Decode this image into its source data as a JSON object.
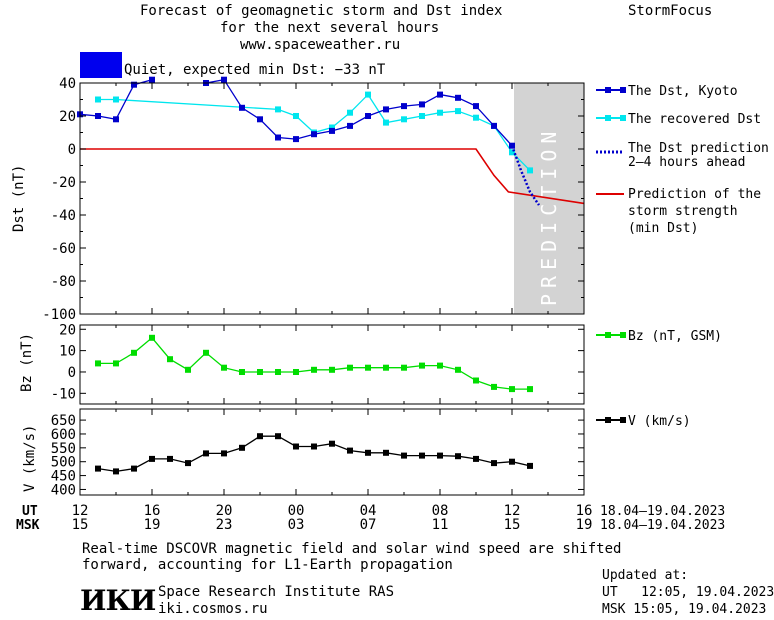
{
  "header": {
    "title_line1": "Forecast of geomagnetic storm and Dst index",
    "title_line2": "for the next several hours",
    "site": "www.spaceweather.ru",
    "brand": "StormFocus",
    "status_text": "Quiet, expected min Dst: −33 nT",
    "status_color": "#0000ee"
  },
  "colors": {
    "dst_kyoto": "#0000cc",
    "dst_recovered": "#00e6ee",
    "dst_prediction": "#0000cc",
    "storm_prediction": "#dd0000",
    "bz": "#00dd00",
    "v": "#000000",
    "prediction_band": "#d3d3d3"
  },
  "legend": {
    "dst_kyoto": "The Dst, Kyoto",
    "dst_recovered": "The recovered Dst",
    "dst_prediction_1": "The Dst prediction",
    "dst_prediction_2": "2–4 hours ahead",
    "storm_1": "Prediction of the",
    "storm_2": "storm strength",
    "storm_3": "(min Dst)",
    "bz": "Bz (nT, GSM)",
    "v": "V (km/s)"
  },
  "prediction_band_label": "PREDICTION",
  "time_axis": {
    "ut_label": "UT",
    "msk_label": "MSK",
    "ut_ticks": [
      "12",
      "16",
      "20",
      "00",
      "04",
      "08",
      "12",
      "16"
    ],
    "msk_ticks": [
      "15",
      "19",
      "23",
      "03",
      "07",
      "11",
      "15",
      "19"
    ],
    "ut_range": "18.04–19.04.2023",
    "msk_range": "18.04–19.04.2023"
  },
  "chart_data": [
    {
      "type": "line",
      "ylabel": "Dst (nT)",
      "ylim": [
        -100,
        40
      ],
      "yticks": [
        -100,
        -80,
        -60,
        -40,
        -20,
        0,
        20,
        40
      ],
      "x_unit": "hours, 18.04.2023 12:00 UT = 0",
      "xlim": [
        0,
        28
      ],
      "prediction_band": [
        24,
        28
      ],
      "series": [
        {
          "name": "The Dst, Kyoto",
          "x": [
            0,
            1,
            2,
            3,
            4,
            5,
            6,
            7,
            8,
            9,
            10,
            11,
            12,
            13,
            14,
            15,
            16,
            17,
            18,
            19,
            20,
            21,
            22,
            23,
            24
          ],
          "y": [
            21,
            20,
            18,
            39,
            42,
            null,
            null,
            40,
            42,
            25,
            18,
            7,
            6,
            9,
            11,
            14,
            20,
            24,
            26,
            27,
            33,
            31,
            26,
            14,
            2
          ]
        },
        {
          "name": "The recovered Dst",
          "x": [
            1,
            2,
            11,
            12,
            13,
            14,
            15,
            16,
            17,
            18,
            19,
            20,
            21,
            22,
            23,
            24,
            25
          ],
          "y": [
            30,
            30,
            24,
            20,
            10,
            13,
            22,
            33,
            16,
            18,
            20,
            22,
            23,
            19,
            14,
            -2,
            -13
          ]
        },
        {
          "name": "The Dst prediction 2–4 hours ahead",
          "x": [
            24,
            24.5,
            25,
            25.5
          ],
          "y": [
            2,
            -13,
            -26,
            -34
          ]
        },
        {
          "name": "Prediction of the storm strength (min Dst)",
          "x": [
            0,
            22,
            23,
            23.8,
            28
          ],
          "y": [
            0,
            0,
            -16,
            -26,
            -33
          ]
        }
      ]
    },
    {
      "type": "line",
      "ylabel": "Bz (nT)",
      "ylim": [
        -15,
        22
      ],
      "yticks": [
        -10,
        0,
        10,
        20
      ],
      "xlim": [
        0,
        28
      ],
      "series": [
        {
          "name": "Bz (nT, GSM)",
          "x": [
            1,
            2,
            3,
            4,
            5,
            6,
            7,
            8,
            9,
            10,
            11,
            12,
            13,
            14,
            15,
            16,
            17,
            18,
            19,
            20,
            21,
            22,
            23,
            24,
            25
          ],
          "y": [
            4,
            4,
            9,
            16,
            6,
            1,
            9,
            2,
            0,
            0,
            0,
            0,
            1,
            1,
            2,
            2,
            2,
            2,
            3,
            3,
            1,
            -4,
            -7,
            -8,
            -8
          ]
        }
      ]
    },
    {
      "type": "line",
      "ylabel": "V (km/s)",
      "ylim": [
        380,
        690
      ],
      "yticks": [
        400,
        450,
        500,
        550,
        600,
        650
      ],
      "xlim": [
        0,
        28
      ],
      "series": [
        {
          "name": "V (km/s)",
          "x": [
            1,
            2,
            3,
            4,
            5,
            6,
            7,
            8,
            9,
            10,
            11,
            12,
            13,
            14,
            15,
            16,
            17,
            18,
            19,
            20,
            21,
            22,
            23,
            24,
            25
          ],
          "y": [
            475,
            465,
            475,
            510,
            510,
            495,
            530,
            530,
            550,
            592,
            592,
            555,
            555,
            565,
            540,
            532,
            532,
            522,
            522,
            522,
            520,
            510,
            495,
            500,
            485
          ]
        }
      ]
    }
  ],
  "footer": {
    "note_line1": "Real-time DSCOVR magnetic field and solar wind speed are shifted",
    "note_line2": "forward, accounting for L1-Earth propagation",
    "logo": "ИКИ",
    "institute": "Space Research Institute RAS",
    "website": "iki.cosmos.ru",
    "updated_label": "Updated at:",
    "updated_ut": "UT   12:05, 19.04.2023",
    "updated_msk": "MSK 15:05, 19.04.2023"
  }
}
